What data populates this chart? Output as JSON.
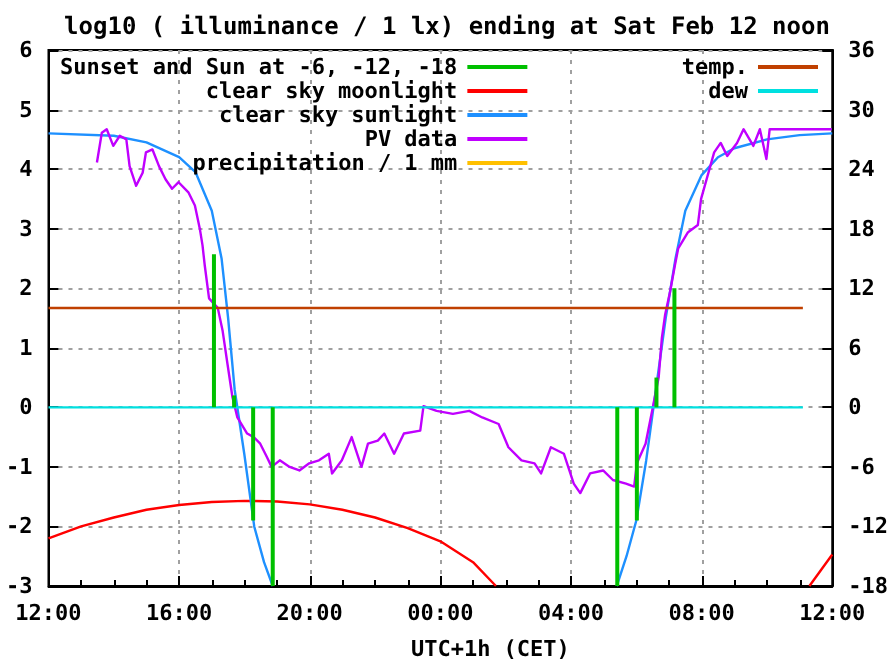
{
  "chart_data": {
    "type": "line",
    "title": "log10 ( illuminance / 1 lx) ending at Sat Feb 12 noon",
    "xlabel": "UTC+1h (CET)",
    "xlim": [
      "--02-11T12:00",
      "--02-12T12:00"
    ],
    "xticks": [
      {
        "value": "--02-11T12:00",
        "label": "12:00"
      },
      {
        "value": "--02-11T16:00",
        "label": "16:00"
      },
      {
        "value": "--02-11T20:00",
        "label": "20:00"
      },
      {
        "value": "--02-12T00:00",
        "label": "00:00"
      },
      {
        "value": "--02-12T04:00",
        "label": "04:00"
      },
      {
        "value": "--02-12T08:00",
        "label": "08:00"
      },
      {
        "value": "--02-12T12:00",
        "label": "12:00"
      }
    ],
    "ylim": [
      -3,
      6
    ],
    "yticks": [
      -3,
      -2,
      -1,
      0,
      1,
      2,
      3,
      4,
      5,
      6
    ],
    "y2lim": [
      -18,
      36
    ],
    "y2ticks": [
      -18,
      -12,
      -6,
      0,
      6,
      12,
      18,
      24,
      30,
      36
    ],
    "grid": true,
    "legend": "top",
    "marker": "none",
    "line_style": "solid",
    "series": [
      {
        "name": "Sunset and Sun at -6, -12, -18",
        "type": "bar",
        "color": "#00c000",
        "x": [
          "--02-11T17:04",
          "--02-11T17:41",
          "--02-11T18:16",
          "--02-11T18:52",
          "--02-12T05:25",
          "--02-12T06:01",
          "--02-12T06:37",
          "--02-12T07:10"
        ],
        "values": [
          2.57,
          0.2,
          -1.9,
          -3,
          -3,
          -1.9,
          0.5,
          2.0
        ]
      },
      {
        "name": "clear sky moonlight",
        "color": "#ff0000",
        "x": [
          "--02-11T12:00",
          "--02-11T13:00",
          "--02-11T14:00",
          "--02-11T15:00",
          "--02-11T16:00",
          "--02-11T17:00",
          "--02-11T18:00",
          "--02-11T19:00",
          "--02-11T20:00",
          "--02-11T21:00",
          "--02-11T22:00",
          "--02-11T23:00",
          "--02-12T00:00",
          "--02-12T01:00",
          "--02-12T01:42",
          "--02-12T06:00",
          "--02-12T11:18",
          "--02-12T12:00"
        ],
        "values": [
          -2.2,
          -2.0,
          -1.85,
          -1.72,
          -1.64,
          -1.59,
          -1.57,
          -1.58,
          -1.63,
          -1.72,
          -1.85,
          -2.03,
          -2.25,
          -2.6,
          -3,
          null,
          -3,
          -2.47
        ]
      },
      {
        "name": "clear sky sunlight",
        "color": "#1e90ff",
        "x": [
          "--02-11T12:00",
          "--02-11T14:00",
          "--02-11T15:00",
          "--02-11T16:00",
          "--02-11T16:30",
          "--02-11T17:00",
          "--02-11T17:18",
          "--02-11T17:30",
          "--02-11T17:42",
          "--02-11T18:00",
          "--02-11T18:18",
          "--02-11T18:36",
          "--02-11T18:52",
          "--02-12T00:00",
          "--02-12T05:24",
          "--02-12T05:42",
          "--02-12T06:00",
          "--02-12T06:18",
          "--02-12T06:36",
          "--02-12T06:54",
          "--02-12T07:12",
          "--02-12T07:30",
          "--02-12T08:00",
          "--02-12T08:30",
          "--02-12T09:00",
          "--02-12T10:00",
          "--02-12T11:00",
          "--02-12T12:00"
        ],
        "values": [
          4.6,
          4.56,
          4.45,
          4.2,
          3.95,
          3.3,
          2.5,
          1.5,
          0.3,
          -0.8,
          -2.0,
          -2.6,
          -3,
          null,
          -3,
          -2.5,
          -1.9,
          -0.9,
          0.3,
          1.5,
          2.5,
          3.3,
          3.9,
          4.2,
          4.35,
          4.5,
          4.57,
          4.6
        ]
      },
      {
        "name": "PV data",
        "color": "#c000ff",
        "x": [
          "--02-11T13:29",
          "--02-11T13:38",
          "--02-11T13:47",
          "--02-11T13:59",
          "--02-11T14:11",
          "--02-11T14:23",
          "--02-11T14:29",
          "--02-11T14:41",
          "--02-11T14:53",
          "--02-11T14:59",
          "--02-11T15:11",
          "--02-11T15:23",
          "--02-11T15:35",
          "--02-11T15:47",
          "--02-11T15:59",
          "--02-11T16:17",
          "--02-11T16:29",
          "--02-11T16:38",
          "--02-11T16:43",
          "--02-11T16:47",
          "--02-11T16:55",
          "--02-11T17:11",
          "--02-11T17:20",
          "--02-11T17:29",
          "--02-11T17:38",
          "--02-11T17:47",
          "--02-11T18:05",
          "--02-11T18:17",
          "--02-11T18:29",
          "--02-11T18:41",
          "--02-11T18:50",
          "--02-11T19:05",
          "--02-11T19:23",
          "--02-11T19:41",
          "--02-11T19:59",
          "--02-11T20:17",
          "--02-11T20:35",
          "--02-11T20:41",
          "--02-11T20:59",
          "--02-11T21:17",
          "--02-11T21:35",
          "--02-11T21:47",
          "--02-11T22:05",
          "--02-11T22:17",
          "--02-11T22:35",
          "--02-11T22:53",
          "--02-11T23:23",
          "--02-11T23:29",
          "--02-11T23:53",
          "--02-12T00:23",
          "--02-12T00:53",
          "--02-12T01:17",
          "--02-12T01:47",
          "--02-12T02:05",
          "--02-12T02:29",
          "--02-12T02:53",
          "--02-12T03:05",
          "--02-12T03:23",
          "--02-12T03:47",
          "--02-12T04:05",
          "--02-12T04:17",
          "--02-12T04:35",
          "--02-12T04:59",
          "--02-12T05:17",
          "--02-12T05:41",
          "--02-12T05:56",
          "--02-12T06:01",
          "--02-12T06:17",
          "--02-12T06:29",
          "--02-12T06:41",
          "--02-12T06:47",
          "--02-12T06:53",
          "--02-12T07:02",
          "--02-12T07:11",
          "--02-12T07:17",
          "--02-12T07:35",
          "--02-12T07:53",
          "--02-12T07:59",
          "--02-12T08:11",
          "--02-12T08:23",
          "--02-12T08:35",
          "--02-12T08:47",
          "--02-12T09:05",
          "--02-12T09:17",
          "--02-12T09:35",
          "--02-12T09:47",
          "--02-12T09:59",
          "--02-12T10:05",
          "--02-12T10:41",
          "--02-12T11:17",
          "--02-12T11:59"
        ],
        "values": [
          4.11,
          4.61,
          4.67,
          4.39,
          4.56,
          4.5,
          4.05,
          3.72,
          3.94,
          4.28,
          4.33,
          4.05,
          3.83,
          3.67,
          3.78,
          3.61,
          3.39,
          3.0,
          2.72,
          2.39,
          1.83,
          1.67,
          1.28,
          0.72,
          0.17,
          -0.17,
          -0.44,
          -0.5,
          -0.61,
          -0.83,
          -1.0,
          -0.89,
          -1.0,
          -1.06,
          -0.94,
          -0.89,
          -0.78,
          -1.11,
          -0.89,
          -0.5,
          -1.0,
          -0.61,
          -0.56,
          -0.44,
          -0.78,
          -0.44,
          -0.39,
          0.02,
          -0.06,
          -0.11,
          -0.06,
          -0.17,
          -0.28,
          -0.67,
          -0.89,
          -0.94,
          -1.11,
          -0.67,
          -0.78,
          -1.28,
          -1.44,
          -1.11,
          -1.06,
          -1.22,
          -1.28,
          -1.33,
          -0.94,
          -0.61,
          -0.06,
          0.5,
          1.17,
          1.56,
          1.94,
          2.39,
          2.67,
          2.94,
          3.06,
          3.5,
          3.89,
          4.28,
          4.44,
          4.22,
          4.44,
          4.67,
          4.39,
          4.67,
          4.17,
          4.67,
          4.67,
          4.67,
          4.67
        ]
      },
      {
        "name": "precipitation / 1 mm",
        "color": "#ffc000"
      },
      {
        "name": "temp.",
        "axis": "y2",
        "color": "#c04000",
        "x": [
          "--02-11T12:00",
          "--02-12T11:06"
        ],
        "values": [
          10,
          10
        ]
      },
      {
        "name": "dew",
        "axis": "y2",
        "color": "#00e0e0",
        "x": [
          "--02-11T12:00",
          "--02-12T11:06"
        ],
        "values": [
          0,
          0
        ]
      }
    ]
  }
}
